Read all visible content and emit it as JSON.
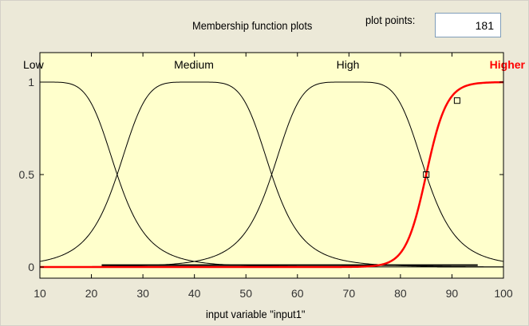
{
  "header": {
    "title": "Membership function plots",
    "plot_points_label": "plot points:",
    "plot_points_value": "181"
  },
  "chart_data": {
    "type": "line",
    "xlabel": "input variable \"input1\"",
    "ylabel": "",
    "xlim": [
      10,
      100
    ],
    "ylim": [
      0,
      1
    ],
    "x_ticks": [
      "10",
      "20",
      "30",
      "40",
      "50",
      "60",
      "70",
      "80",
      "90",
      "100"
    ],
    "y_ticks": [
      "0",
      "0.5",
      "1"
    ],
    "grid": false,
    "background_color": "#ffffcc",
    "series": [
      {
        "name": "Low",
        "shape": "gbell",
        "a": 15,
        "b": 2.5,
        "c": 10,
        "color": "#000000",
        "highlighted": false
      },
      {
        "name": "Medium",
        "shape": "gbell",
        "a": 15,
        "b": 2.5,
        "c": 40,
        "color": "#000000",
        "highlighted": false
      },
      {
        "name": "High",
        "shape": "gbell",
        "a": 15,
        "b": 2.5,
        "c": 70,
        "color": "#000000",
        "highlighted": false
      },
      {
        "name": "Higher",
        "shape": "sigmoid",
        "a": 0.5,
        "c": 85,
        "color": "#ff0000",
        "highlighted": true
      }
    ],
    "handle_points": [
      {
        "x": 85,
        "y": 0.5
      },
      {
        "x": 91,
        "y": 0.9
      }
    ]
  }
}
